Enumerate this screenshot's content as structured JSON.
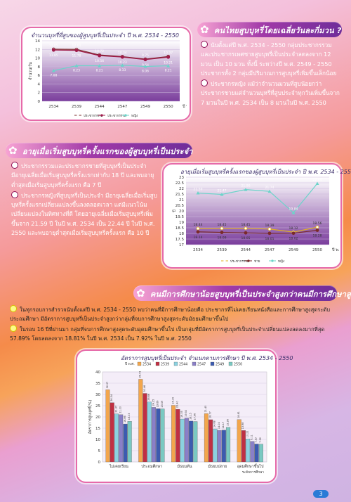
{
  "section1": {
    "banner": "คนไทยสูบบุหรี่โดยเฉลี่ยวันละกี่มวน ?",
    "paragraphs": [
      "นับตั้งแต่ปี พ.ศ. 2534 - 2550 กลุ่มประชากรรวมและประชากรเพศชายสูบบุหรี่เป็นประจำลดลงจาก 12 มวน เป็น 10 มวน ทั้งนี้ ระหว่างปี พ.ศ. 2549 - 2550 ประชากรทั้ง 2 กลุ่มมีปริมาณการสูบบุหรี่เพิ่มขึ้นเล็กน้อย",
      "ประชากรหญิง แม้ว่าจำนวนมวนที่สูบน้อยกว่าประชากรชายแต่จำนวนบุหรี่ที่สูบประจำทุกวันเพิ่มขึ้นจาก 7 มวนในปี พ.ศ. 2534 เป็น 8 มวนในปี พ.ศ. 2550"
    ]
  },
  "section2": {
    "banner": "อายุเมื่อเริ่มสูบบุหรี่ครั้งแรกของผู้สูบบุหรี่เป็นประจำ",
    "paragraphs": [
      "ประชากรรวมและประชากรชายที่สูบบุหรี่เป็นประจำมีอายุเฉลี่ยเมื่อเริ่มสูบบุหรี่ครั้งแรกเท่ากับ 18 ปี และพบอายุต่ำสุดเมื่อเริ่มสูบบุหรี่ครั้งแรก คือ 7 ปี",
      "ประชากรหญิงที่สูบบุหรี่เป็นประจำ มีอายุเฉลี่ยเมื่อเริ่มสูบบุหรี่ครั้งแรกเปลี่ยนแปลงขึ้นลงตลอดเวลา แต่มีแนวโน้มเปลี่ยนแปลงในทิศทางที่ดี โดยอายุเฉลี่ยเมื่อเริ่มสูบบุหรี่เพิ่มขึ้นจาก 21.59 ปี ในปี พ.ศ. 2534 เป็น 22.44 ปี ในปี พ.ศ. 2550 และพบอายุต่ำสุดเมื่อเริ่มสูบบุหรี่ครั้งแรก คือ 10 ปี"
    ]
  },
  "section3": {
    "banner": "คนมีการศึกษาน้อยสูบบุหรี่เป็นประจำสูงกว่าคนมีการศึกษาสูง",
    "paragraphs": [
      "ในทุกรอบการสำรวจนับตั้งแต่ปี พ.ศ. 2534 - 2550 พบว่าคนที่มีการศึกษาน้อยคือ ประชากรที่ไม่เคยเรียนหนังสือและการศึกษาสูงสุดระดับประถมศึกษา มีอัตราการสูบบุหรี่เป็นประจำสูงกว่ากลุ่มที่จบการศึกษาสูงสุดระดับมัธยมศึกษาขึ้นไป",
      "ในรอบ 16 ปีที่ผ่านมา กลุ่มที่จบการศึกษาสูงสุดระดับอุดมศึกษาขึ้นไป เป็นกลุ่มที่มีอัตราการสูบบุหรี่เป็นประจำเปลี่ยนแปลงลดลงมากที่สุด 57.89% โดยลดลงจาก 18.81% ในปี พ.ศ. 2534 เป็น 7.92% ในปี พ.ศ. 2550"
    ]
  },
  "page_number": "3",
  "colors": {
    "male": "#7a2a2a",
    "total": "#a01a4a",
    "female": "#6bd4c9",
    "banner": "#7a2d9a"
  },
  "chart_data": [
    {
      "type": "line",
      "title": "จำนวนบุหรี่ที่สูบของผู้สูบบุหรี่เป็นประจำ ปี พ.ศ. 2534 - 2550",
      "ylabel": "จำนวน/วัน",
      "xunit": "ปี พ.ศ.",
      "x": [
        "2534",
        "2539",
        "2544",
        "2547",
        "2549",
        "2550"
      ],
      "ylim": [
        0,
        14
      ],
      "yticks": [
        0,
        2,
        4,
        6,
        8,
        10,
        12,
        14
      ],
      "series": [
        {
          "name": "ประชากรชาย",
          "values": [
            12.05,
            12.01,
            10.72,
            10.34,
            9.75,
            10.37
          ]
        },
        {
          "name": "ประชากรรวม",
          "values": [
            11.85,
            11.78,
            10.56,
            10.23,
            9.64,
            10.21
          ]
        },
        {
          "name": "หญิง",
          "values": [
            7.08,
            8.23,
            8.21,
            8.33,
            8.06,
            8.21
          ]
        }
      ]
    },
    {
      "type": "line",
      "title": "อายุเมื่อเริ่มสูบบุหรี่ครั้งแรกของผู้สูบบุหรี่เป็นประจำ ปี พ.ศ. 2534 - 2550",
      "ylabel": "ปี",
      "xunit": "ปี พ.ศ.",
      "x": [
        "2534",
        "2539",
        "2544",
        "2547",
        "2549",
        "2550"
      ],
      "ylim": [
        17,
        23
      ],
      "yticks": [
        17,
        17.5,
        18,
        18.5,
        19,
        19.5,
        20,
        20.5,
        21,
        21.5,
        22,
        22.5,
        23
      ],
      "series": [
        {
          "name": "ประชากรรวม",
          "values": [
            18.44,
            18.45,
            18.45,
            18.39,
            18.12,
            18.56
          ]
        },
        {
          "name": "ชาย",
          "values": [
            18.14,
            18.09,
            18.05,
            18.01,
            18.02,
            18.28
          ]
        },
        {
          "name": "หญิง",
          "values": [
            21.59,
            21.47,
            21.9,
            21.74,
            19.84,
            22.44
          ]
        }
      ]
    },
    {
      "type": "bar",
      "title": "อัตราการสูบบุหรี่เป็นประจำ จำแนกตามการศึกษา ปี พ.ศ. 2534 - 2550",
      "ylabel": "อัตราการสูบบุหรี่(%)",
      "legend_title": "ปี พ.ศ.",
      "xunit": "ระดับการศึกษา",
      "categories": [
        "ไม่เคยเรียน",
        "ประถมศึกษา",
        "มัธยมต้น",
        "มัธยมปลาย",
        "อุดมศึกษาขึ้นไป"
      ],
      "ylim": [
        0,
        40
      ],
      "yticks": [
        0,
        5,
        10,
        15,
        20,
        25,
        30,
        35,
        40
      ],
      "series": [
        {
          "name": "2534",
          "values": [
            32.07,
            36.73,
            25.15,
            21.45,
            18.81
          ]
        },
        {
          "name": "2539",
          "values": [
            26.34,
            30.46,
            23.4,
            18.77,
            13.98
          ]
        },
        {
          "name": "2544",
          "values": [
            21.37,
            26.66,
            19.05,
            14.68,
            10.22
          ]
        },
        {
          "name": "2547",
          "values": [
            21.0,
            24.25,
            19.5,
            14.04,
            9.11
          ]
        },
        {
          "name": "2549",
          "values": [
            16.86,
            23.66,
            18.15,
            14.17,
            7.97
          ]
        },
        {
          "name": "2550",
          "values": [
            18.03,
            23.59,
            17.96,
            15.36,
            7.92
          ]
        }
      ]
    }
  ]
}
